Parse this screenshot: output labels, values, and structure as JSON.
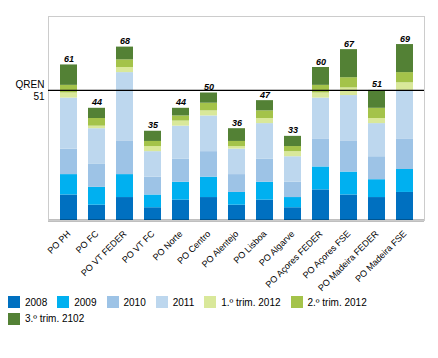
{
  "chart_data": {
    "type": "bar",
    "stacked": true,
    "categories": [
      "PO PH",
      "PO FC",
      "PO VT FEDER",
      "PO VT FC",
      "PO Norte",
      "PO Centro",
      "PO Alentejo",
      "PO Lisboa",
      "PO Algarve",
      "PO Açores FEDER",
      "PO Açores FSE",
      "PO Madeira FEDER",
      "PO Madeira FSE"
    ],
    "series": [
      {
        "name": "2008",
        "color": "#0070C0",
        "values": [
          10,
          6,
          9,
          5,
          8,
          9,
          6,
          8,
          5,
          12,
          10,
          9,
          11
        ]
      },
      {
        "name": "2009",
        "color": "#00B0F0",
        "values": [
          8,
          7,
          9,
          5,
          7,
          8,
          5,
          7,
          4,
          9,
          9,
          7,
          9
        ]
      },
      {
        "name": "2010",
        "color": "#9DC3E6",
        "values": [
          10,
          9,
          13,
          7,
          9,
          10,
          7,
          9,
          6,
          11,
          12,
          9,
          12
        ]
      },
      {
        "name": "2011",
        "color": "#BDD7EE",
        "values": [
          20,
          14,
          27,
          10,
          13,
          14,
          10,
          14,
          10,
          16,
          18,
          13,
          19
        ]
      },
      {
        "name": "1.º trim. 2012",
        "color": "#D9E89A",
        "values": [
          2,
          1,
          2,
          2,
          2,
          2,
          1,
          2,
          2,
          2,
          3,
          2,
          3
        ]
      },
      {
        "name": "2.º trim. 2012",
        "color": "#A4C34A",
        "values": [
          3,
          3,
          3,
          2,
          2,
          3,
          2,
          3,
          2,
          3,
          4,
          4,
          4
        ]
      },
      {
        "name": "3.º trim. 2102",
        "color": "#538135",
        "values": [
          8,
          4,
          5,
          4,
          3,
          4,
          5,
          4,
          4,
          7,
          11,
          7,
          11
        ]
      }
    ],
    "totals": [
      61,
      44,
      68,
      35,
      44,
      50,
      36,
      47,
      33,
      60,
      67,
      51,
      69
    ],
    "hline": {
      "value": 51,
      "label": "QREN",
      "value_label": "51"
    },
    "ylim": [
      0,
      80
    ],
    "tick_labels": "x",
    "legend": "bottom",
    "grid": false
  }
}
